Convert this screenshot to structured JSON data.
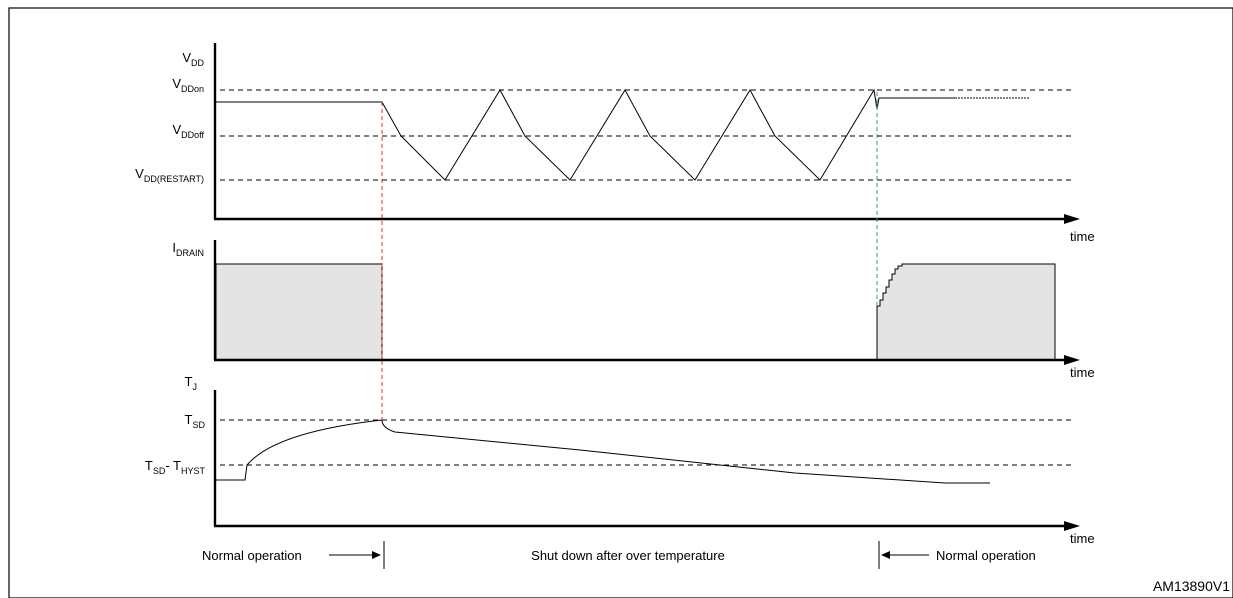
{
  "diagram": {
    "figure_id": "AM13890V1",
    "time_label": "time",
    "vdd_panel": {
      "axis": {
        "main": "V",
        "sub": "DD"
      },
      "levels": [
        {
          "main": "V",
          "sub": "DDon"
        },
        {
          "main": "V",
          "sub": "DDoff"
        },
        {
          "main": "V",
          "sub": "DD(RESTART)"
        }
      ]
    },
    "idrain_panel": {
      "axis": {
        "main": "I",
        "sub": "DRAIN"
      }
    },
    "tj_panel": {
      "axis": {
        "main": "T",
        "sub": "J"
      },
      "levels": [
        {
          "main": "T",
          "sub": "SD"
        },
        {
          "main": "T",
          "sub": "SD",
          "minus": "- T",
          "sub2": "HYST"
        }
      ]
    },
    "annotations": {
      "left": "Normal operation",
      "middle": "Shut down after over temperature",
      "right": "Normal operation"
    },
    "colors": {
      "shade": "#e4e4e4",
      "red_marker": "#e0302a",
      "teal_marker": "#2d9a86"
    }
  }
}
